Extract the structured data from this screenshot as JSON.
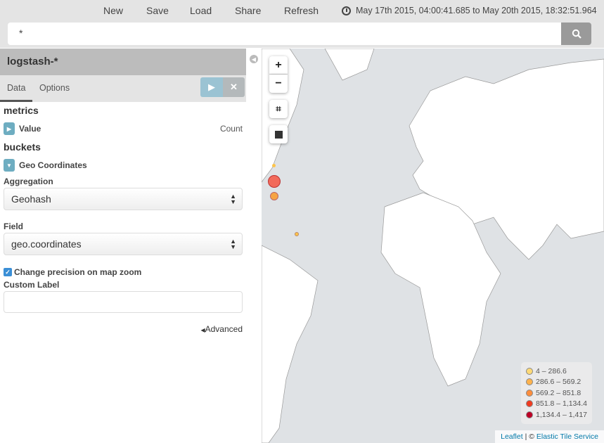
{
  "topnav": {
    "items": [
      "New",
      "Save",
      "Load",
      "Share",
      "Refresh"
    ],
    "time_range": "May 17th 2015, 04:00:41.685 to May 20th 2015, 18:32:51.964"
  },
  "search": {
    "value": "*"
  },
  "sidebar": {
    "index_pattern": "logstash-*",
    "tabs": [
      "Data",
      "Options"
    ],
    "metrics_title": "metrics",
    "metric": {
      "label": "Value",
      "type": "Count"
    },
    "buckets_title": "buckets",
    "bucket": {
      "label": "Geo Coordinates"
    },
    "aggregation_label": "Aggregation",
    "aggregation_value": "Geohash",
    "field_label": "Field",
    "field_value": "geo.coordinates",
    "precision_checkbox": {
      "label": "Change precision on map zoom",
      "checked": true
    },
    "custom_label": "Custom Label",
    "custom_value": "",
    "advanced": "Advanced"
  },
  "map": {
    "legend": [
      {
        "range": "4 – 286.6",
        "color": "#fed976"
      },
      {
        "range": "286.6 – 569.2",
        "color": "#feb24c"
      },
      {
        "range": "569.2 – 851.8",
        "color": "#fd8d3c"
      },
      {
        "range": "851.8 – 1,134.4",
        "color": "#f03b20"
      },
      {
        "range": "1,134.4 – 1,417",
        "color": "#bd0026"
      }
    ],
    "attribution": {
      "leaflet": "Leaflet",
      "sep": " | © ",
      "service": "Elastic Tile Service"
    }
  },
  "colors": {
    "accent": "#6eadc1",
    "header": "#bcbcbc",
    "toolbar": "#e4e4e4"
  }
}
